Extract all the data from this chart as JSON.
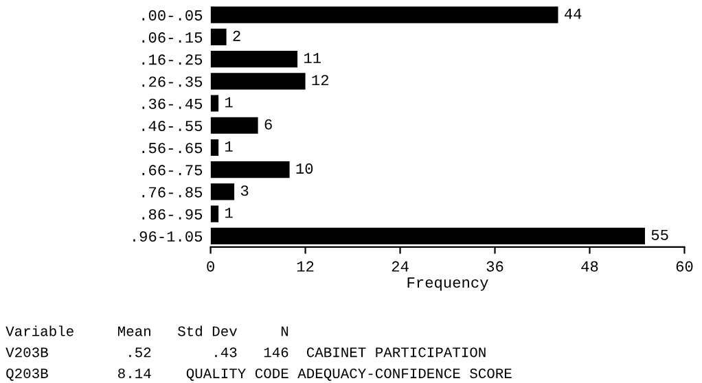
{
  "chart_data": {
    "type": "bar",
    "orientation": "horizontal",
    "categories": [
      ".00-.05",
      ".06-.15",
      ".16-.25",
      ".26-.35",
      ".36-.45",
      ".46-.55",
      ".56-.65",
      ".66-.75",
      ".76-.85",
      ".86-.95",
      ".96-1.05"
    ],
    "values": [
      44,
      2,
      11,
      12,
      1,
      6,
      1,
      10,
      3,
      1,
      55
    ],
    "color": "#000000",
    "data_labels": true,
    "xlim": [
      0,
      60
    ],
    "xticks": [
      0,
      12,
      24,
      36,
      48,
      60
    ],
    "xlabel": "Frequency",
    "grid": false,
    "annotations": [
      "Variable     Mean   Std Dev     N",
      "V203B         .52       .43   146  CABINET PARTICIPATION",
      "Q203B        8.14    QUALITY CODE ADEQUACY-CONFIDENCE SCORE"
    ]
  }
}
